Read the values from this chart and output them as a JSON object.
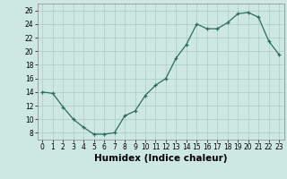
{
  "x": [
    0,
    1,
    2,
    3,
    4,
    5,
    6,
    7,
    8,
    9,
    10,
    11,
    12,
    13,
    14,
    15,
    16,
    17,
    18,
    19,
    20,
    21,
    22,
    23
  ],
  "y": [
    14,
    13.8,
    11.8,
    10,
    8.8,
    7.8,
    7.8,
    8.0,
    10.5,
    11.2,
    13.5,
    15.0,
    16.0,
    19.0,
    21.0,
    24.0,
    23.3,
    23.3,
    24.2,
    25.5,
    25.7,
    25.0,
    21.5,
    19.5
  ],
  "xlabel": "Humidex (Indice chaleur)",
  "xlim": [
    -0.5,
    23.5
  ],
  "ylim": [
    7,
    27
  ],
  "yticks": [
    8,
    10,
    12,
    14,
    16,
    18,
    20,
    22,
    24,
    26
  ],
  "xticks": [
    0,
    1,
    2,
    3,
    4,
    5,
    6,
    7,
    8,
    9,
    10,
    11,
    12,
    13,
    14,
    15,
    16,
    17,
    18,
    19,
    20,
    21,
    22,
    23
  ],
  "line_color": "#2e6b5e",
  "marker": "+",
  "bg_color": "#cde8e2",
  "grid_color": "#aaccc6",
  "xlabel_fontsize": 7.5,
  "tick_fontsize": 5.5
}
